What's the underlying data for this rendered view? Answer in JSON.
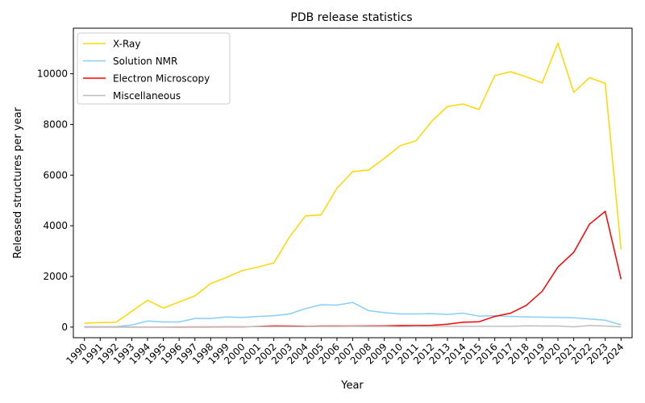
{
  "chart_data": {
    "type": "line",
    "title": "PDB release statistics",
    "xlabel": "Year",
    "ylabel": "Released structures per year",
    "x": [
      1990,
      1991,
      1992,
      1993,
      1994,
      1995,
      1996,
      1997,
      1998,
      1999,
      2000,
      2001,
      2002,
      2003,
      2004,
      2005,
      2006,
      2007,
      2008,
      2009,
      2010,
      2011,
      2012,
      2013,
      2014,
      2015,
      2016,
      2017,
      2018,
      2019,
      2020,
      2021,
      2022,
      2023,
      2024
    ],
    "xlim": [
      1989.3,
      2024.7
    ],
    "ylim": [
      -420,
      11800
    ],
    "yticks": [
      0,
      2000,
      4000,
      6000,
      8000,
      10000
    ],
    "grid": false,
    "legend_position": "top-left",
    "series": [
      {
        "name": "X-Ray",
        "color": "#FFD700",
        "values": [
          150,
          175,
          190,
          620,
          1060,
          750,
          990,
          1230,
          1720,
          1960,
          2230,
          2370,
          2530,
          3560,
          4390,
          4430,
          5480,
          6140,
          6200,
          6660,
          7160,
          7350,
          8120,
          8710,
          8810,
          8590,
          9930,
          10080,
          9880,
          9640,
          11210,
          9270,
          9850,
          9620,
          3070
        ]
      },
      {
        "name": "Solution NMR",
        "color": "#87CEFA",
        "values": [
          20,
          15,
          20,
          80,
          240,
          200,
          200,
          340,
          340,
          400,
          380,
          420,
          450,
          520,
          730,
          880,
          870,
          970,
          650,
          570,
          520,
          520,
          530,
          500,
          550,
          430,
          450,
          420,
          400,
          390,
          380,
          370,
          320,
          270,
          90
        ]
      },
      {
        "name": "Electron Microscopy",
        "color": "#FF0000",
        "values": [
          0,
          0,
          0,
          0,
          0,
          0,
          0,
          5,
          5,
          10,
          10,
          25,
          45,
          40,
          30,
          40,
          40,
          40,
          45,
          50,
          60,
          60,
          70,
          110,
          190,
          210,
          420,
          550,
          860,
          1410,
          2370,
          2950,
          4060,
          4570,
          1890
        ]
      },
      {
        "name": "Miscellaneous",
        "color": "#BEBEBE",
        "values": [
          5,
          5,
          5,
          5,
          5,
          5,
          10,
          10,
          10,
          10,
          20,
          15,
          20,
          20,
          20,
          25,
          25,
          30,
          25,
          25,
          20,
          25,
          25,
          30,
          30,
          30,
          30,
          30,
          50,
          40,
          40,
          10,
          60,
          40,
          10
        ]
      }
    ]
  }
}
